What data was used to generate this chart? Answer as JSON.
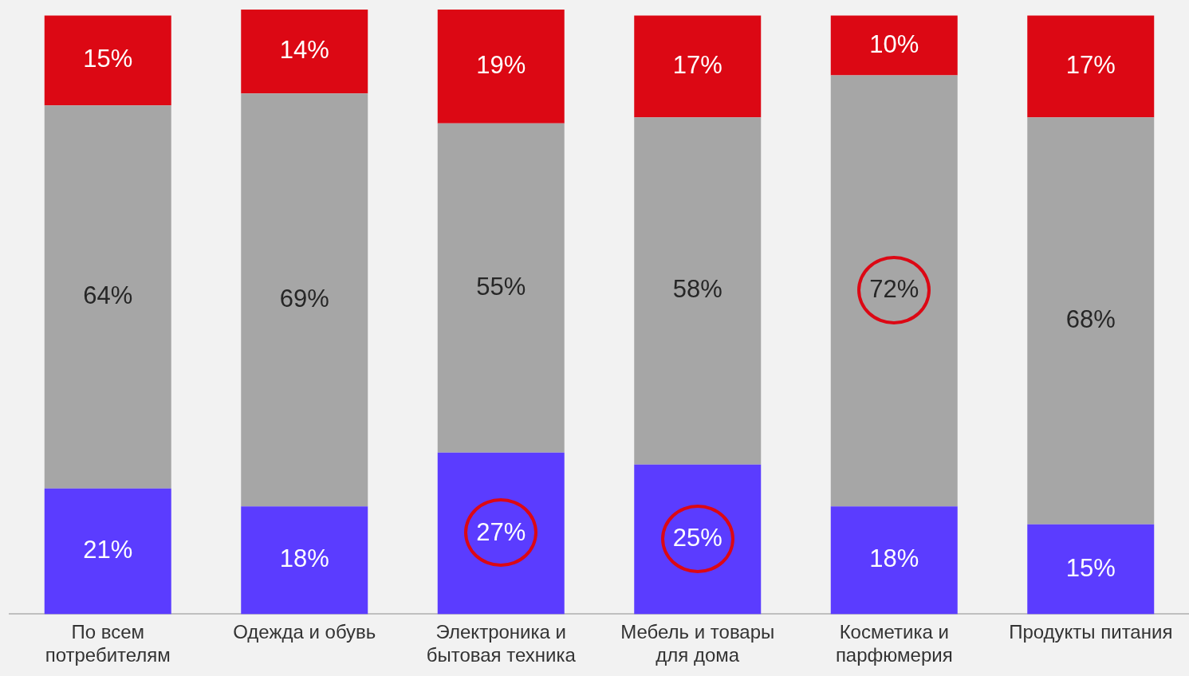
{
  "chart_data": {
    "type": "bar",
    "stacked": true,
    "categories": [
      "По всем потребителям",
      "Одежда и обувь",
      "Электроника и бытовая техника",
      "Мебель и товары для дома",
      "Косметика и парфюмерия",
      "Продукты питания"
    ],
    "ylim": [
      0,
      101
    ],
    "tick_labels": "x",
    "grid": false,
    "legend": false,
    "series": [
      {
        "color": "#5b3cff",
        "values": [
          21,
          18,
          27,
          25,
          18,
          15
        ],
        "value_labels": [
          "21%",
          "18%",
          "27%",
          "25%",
          "18%",
          "15%"
        ]
      },
      {
        "color": "#a6a6a6",
        "values": [
          64,
          69,
          55,
          58,
          72,
          68
        ],
        "value_labels": [
          "64%",
          "69%",
          "55%",
          "58%",
          "72%",
          "68%"
        ]
      },
      {
        "color": "#dc0814",
        "values": [
          15,
          14,
          19,
          17,
          10,
          17
        ],
        "value_labels": [
          "15%",
          "14%",
          "19%",
          "17%",
          "10%",
          "17%"
        ]
      }
    ]
  }
}
